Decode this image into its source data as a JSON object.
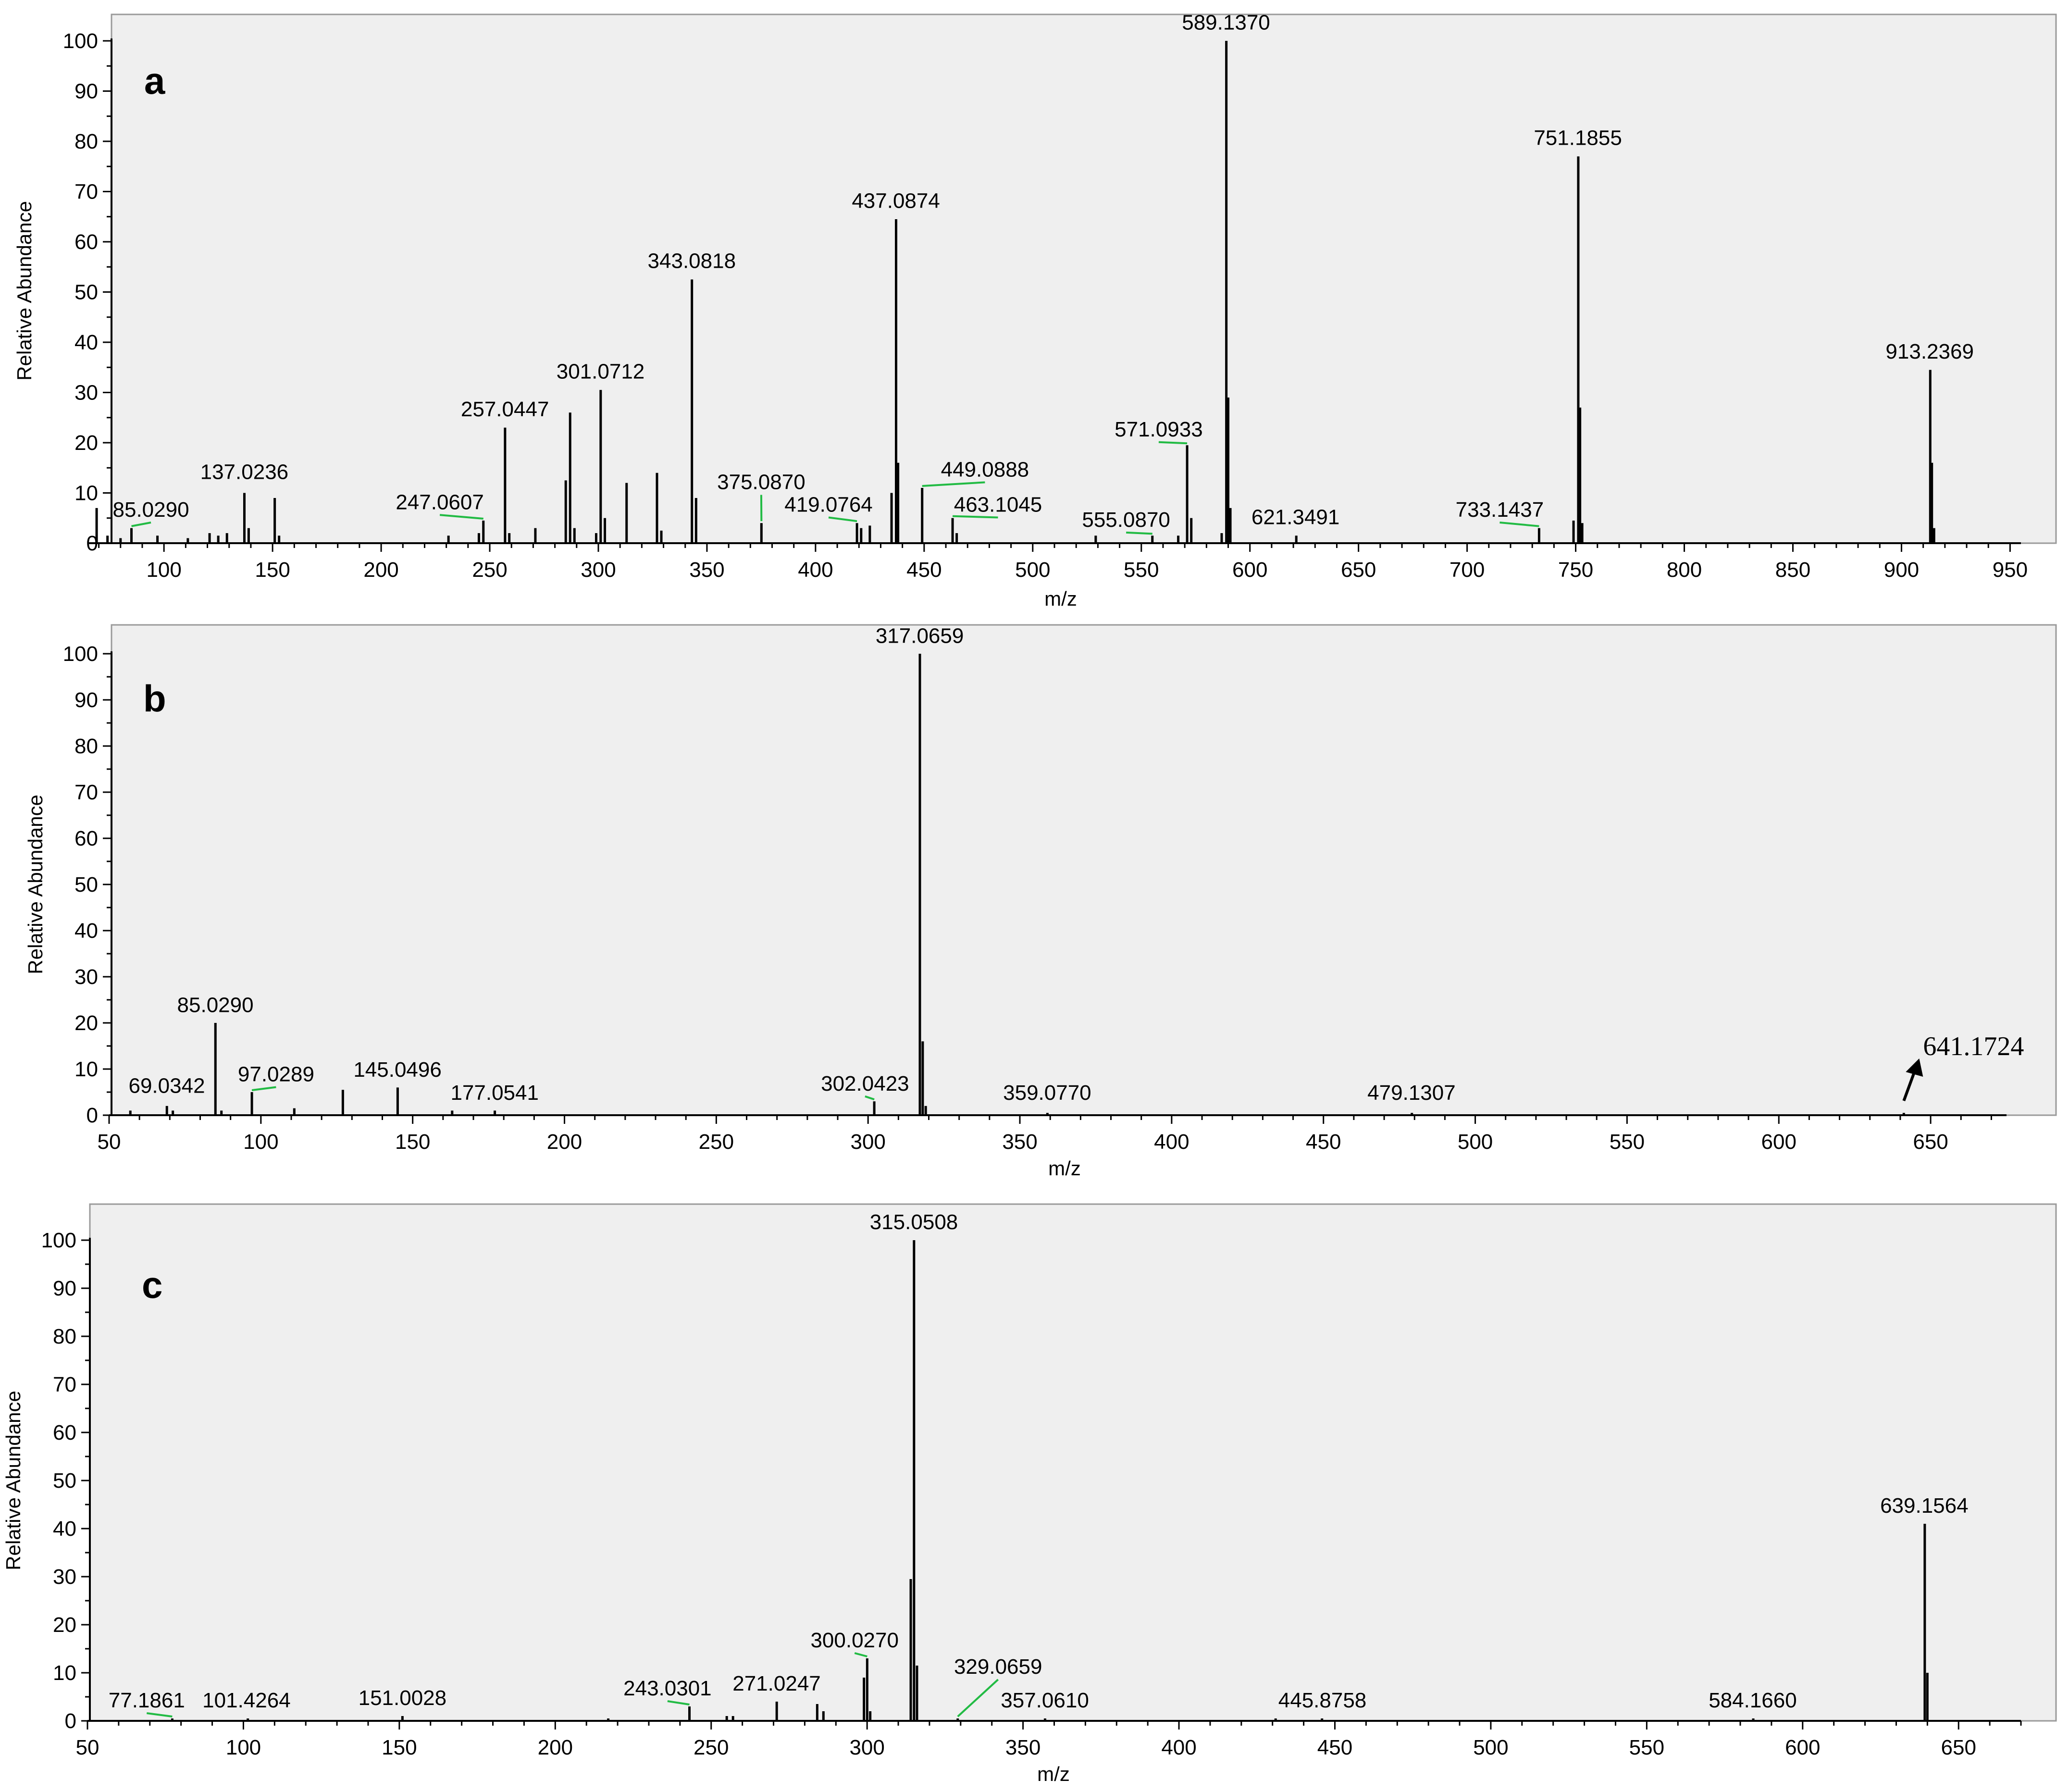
{
  "colors": {
    "plot_bg": "#efefef",
    "frame": "#9a9a9a",
    "peak": "#000000",
    "leader": "#22bb44",
    "text": "#000000"
  },
  "chart_data": [
    {
      "panel": "a",
      "type": "bar",
      "xlabel": "m/z",
      "ylabel": "Relative Abundance",
      "xlim": [
        65,
        955
      ],
      "ylim": [
        0,
        100
      ],
      "xticks": [
        100,
        150,
        200,
        250,
        300,
        350,
        400,
        450,
        500,
        550,
        600,
        650,
        700,
        750,
        800,
        850,
        900,
        950
      ],
      "yticks": [
        0,
        10,
        20,
        30,
        40,
        50,
        60,
        70,
        80,
        90,
        100
      ],
      "peaks": [
        {
          "mz": 69,
          "int": 7
        },
        {
          "mz": 74,
          "int": 1.5
        },
        {
          "mz": 80,
          "int": 1
        },
        {
          "mz": 85.029,
          "int": 3
        },
        {
          "mz": 97,
          "int": 1.5
        },
        {
          "mz": 111,
          "int": 1
        },
        {
          "mz": 121,
          "int": 2
        },
        {
          "mz": 125,
          "int": 1.5
        },
        {
          "mz": 129,
          "int": 2
        },
        {
          "mz": 137.0236,
          "int": 10
        },
        {
          "mz": 139,
          "int": 3
        },
        {
          "mz": 151,
          "int": 9
        },
        {
          "mz": 153,
          "int": 1.5
        },
        {
          "mz": 231,
          "int": 1.5
        },
        {
          "mz": 245,
          "int": 2
        },
        {
          "mz": 247.0607,
          "int": 4.5
        },
        {
          "mz": 257.0447,
          "int": 23
        },
        {
          "mz": 259,
          "int": 2
        },
        {
          "mz": 271,
          "int": 3
        },
        {
          "mz": 285,
          "int": 12.5
        },
        {
          "mz": 287,
          "int": 26
        },
        {
          "mz": 289,
          "int": 3
        },
        {
          "mz": 299,
          "int": 2
        },
        {
          "mz": 301.0712,
          "int": 30.5
        },
        {
          "mz": 303,
          "int": 5
        },
        {
          "mz": 313,
          "int": 12
        },
        {
          "mz": 327,
          "int": 14
        },
        {
          "mz": 329,
          "int": 2.5
        },
        {
          "mz": 343.0818,
          "int": 52.5
        },
        {
          "mz": 345,
          "int": 9
        },
        {
          "mz": 375.087,
          "int": 4
        },
        {
          "mz": 419.0764,
          "int": 4
        },
        {
          "mz": 421,
          "int": 3
        },
        {
          "mz": 425,
          "int": 3.5
        },
        {
          "mz": 435,
          "int": 10
        },
        {
          "mz": 437.0874,
          "int": 64.5
        },
        {
          "mz": 438,
          "int": 16
        },
        {
          "mz": 449.0888,
          "int": 11
        },
        {
          "mz": 463.1045,
          "int": 5
        },
        {
          "mz": 465,
          "int": 2
        },
        {
          "mz": 529,
          "int": 1.5
        },
        {
          "mz": 555.087,
          "int": 1.5
        },
        {
          "mz": 567,
          "int": 1.5
        },
        {
          "mz": 571.0933,
          "int": 19.5
        },
        {
          "mz": 573,
          "int": 5
        },
        {
          "mz": 587,
          "int": 2
        },
        {
          "mz": 589.137,
          "int": 100
        },
        {
          "mz": 590,
          "int": 29
        },
        {
          "mz": 591,
          "int": 7
        },
        {
          "mz": 621.3491,
          "int": 1.5
        },
        {
          "mz": 733.1437,
          "int": 3
        },
        {
          "mz": 749,
          "int": 4.5
        },
        {
          "mz": 751.1855,
          "int": 77
        },
        {
          "mz": 752,
          "int": 27
        },
        {
          "mz": 753,
          "int": 4
        },
        {
          "mz": 913.2369,
          "int": 34.5
        },
        {
          "mz": 914,
          "int": 16
        },
        {
          "mz": 915,
          "int": 3
        }
      ],
      "labels": [
        {
          "text": "85.0290",
          "mz": 85.029,
          "int": 3,
          "lx": 94,
          "ly": 4.5,
          "leader": true
        },
        {
          "text": "137.0236",
          "mz": 137.0236,
          "int": 10,
          "lx": 137,
          "ly": 12
        },
        {
          "text": "247.0607",
          "mz": 247.0607,
          "int": 4.5,
          "lx": 227,
          "ly": 6,
          "leader": true
        },
        {
          "text": "257.0447",
          "mz": 257.0447,
          "int": 23,
          "lx": 257,
          "ly": 24.5
        },
        {
          "text": "301.0712",
          "mz": 301.0712,
          "int": 30.5,
          "lx": 301,
          "ly": 32
        },
        {
          "text": "343.0818",
          "mz": 343.0818,
          "int": 52.5,
          "lx": 343,
          "ly": 54
        },
        {
          "text": "375.0870",
          "mz": 375.087,
          "int": 4,
          "lx": 375,
          "ly": 10,
          "leader": true
        },
        {
          "text": "419.0764",
          "mz": 419.0764,
          "int": 4,
          "lx": 406,
          "ly": 5.5,
          "leader": true
        },
        {
          "text": "437.0874",
          "mz": 437.0874,
          "int": 64.5,
          "lx": 437,
          "ly": 66
        },
        {
          "text": "449.0888",
          "mz": 449.0888,
          "int": 11,
          "lx": 478,
          "ly": 12.5,
          "leader": true
        },
        {
          "text": "463.1045",
          "mz": 463.1045,
          "int": 5,
          "lx": 484,
          "ly": 5.5,
          "leader": true
        },
        {
          "text": "555.0870",
          "mz": 555.087,
          "int": 1.5,
          "lx": 543,
          "ly": 2.5,
          "leader": true
        },
        {
          "text": "571.0933",
          "mz": 571.0933,
          "int": 19.5,
          "lx": 558,
          "ly": 20.5,
          "leader": true
        },
        {
          "text": "589.1370",
          "mz": 589.137,
          "int": 100,
          "lx": 589,
          "ly": 101.5
        },
        {
          "text": "621.3491",
          "mz": 621.3491,
          "int": 1.5,
          "lx": 621,
          "ly": 3
        },
        {
          "text": "733.1437",
          "mz": 733.1437,
          "int": 3,
          "lx": 715,
          "ly": 4.5,
          "leader": true
        },
        {
          "text": "751.1855",
          "mz": 751.1855,
          "int": 77,
          "lx": 751,
          "ly": 78.5
        },
        {
          "text": "913.2369",
          "mz": 913.2369,
          "int": 34.5,
          "lx": 913,
          "ly": 36
        }
      ]
    },
    {
      "panel": "b",
      "type": "bar",
      "xlabel": "m/z",
      "ylabel": "Relative Abundance",
      "xlim": [
        50,
        675
      ],
      "ylim": [
        0,
        100
      ],
      "xticks": [
        50,
        100,
        150,
        200,
        250,
        300,
        350,
        400,
        450,
        500,
        550,
        600,
        650
      ],
      "yticks": [
        0,
        10,
        20,
        30,
        40,
        50,
        60,
        70,
        80,
        90,
        100
      ],
      "peaks": [
        {
          "mz": 57,
          "int": 1
        },
        {
          "mz": 69.0342,
          "int": 2
        },
        {
          "mz": 71,
          "int": 1
        },
        {
          "mz": 85.029,
          "int": 20
        },
        {
          "mz": 87,
          "int": 1
        },
        {
          "mz": 97.0289,
          "int": 5
        },
        {
          "mz": 111,
          "int": 1.5
        },
        {
          "mz": 127,
          "int": 5.5
        },
        {
          "mz": 145.0496,
          "int": 6
        },
        {
          "mz": 163,
          "int": 1
        },
        {
          "mz": 177.0541,
          "int": 1
        },
        {
          "mz": 302.0423,
          "int": 3
        },
        {
          "mz": 317.0659,
          "int": 100
        },
        {
          "mz": 318,
          "int": 16
        },
        {
          "mz": 319,
          "int": 2
        },
        {
          "mz": 359.077,
          "int": 0.5
        },
        {
          "mz": 479.1307,
          "int": 0.5
        },
        {
          "mz": 641.1724,
          "int": 0.5
        }
      ],
      "labels": [
        {
          "text": "69.0342",
          "mz": 69.0342,
          "int": 2,
          "lx": 69,
          "ly": 4
        },
        {
          "text": "85.0290",
          "mz": 85.029,
          "int": 20,
          "lx": 85,
          "ly": 21.5
        },
        {
          "text": "97.0289",
          "mz": 97.0289,
          "int": 5,
          "lx": 105,
          "ly": 6.5,
          "leader": true
        },
        {
          "text": "145.0496",
          "mz": 145.0496,
          "int": 6,
          "lx": 145,
          "ly": 7.5
        },
        {
          "text": "177.0541",
          "mz": 177.0541,
          "int": 1,
          "lx": 177,
          "ly": 2.5
        },
        {
          "text": "302.0423",
          "mz": 302.0423,
          "int": 3,
          "lx": 299,
          "ly": 4.5,
          "leader": true
        },
        {
          "text": "317.0659",
          "mz": 317.0659,
          "int": 100,
          "lx": 317,
          "ly": 101.5
        },
        {
          "text": "359.0770",
          "mz": 359.077,
          "int": 0.5,
          "lx": 359,
          "ly": 2.5
        },
        {
          "text": "479.1307",
          "mz": 479.1307,
          "int": 0.5,
          "lx": 479,
          "ly": 2.5
        }
      ],
      "arrow_label": {
        "text": "641.1724",
        "mz": 641.1724
      }
    },
    {
      "panel": "c",
      "type": "bar",
      "xlabel": "m/z",
      "ylabel": "Relative Abundance",
      "xlim": [
        50,
        670
      ],
      "ylim": [
        0,
        100
      ],
      "xticks": [
        50,
        100,
        150,
        200,
        250,
        300,
        350,
        400,
        450,
        500,
        550,
        600,
        650
      ],
      "yticks": [
        0,
        10,
        20,
        30,
        40,
        50,
        60,
        70,
        80,
        90,
        100
      ],
      "peaks": [
        {
          "mz": 77.1861,
          "int": 0.5
        },
        {
          "mz": 101.4264,
          "int": 0.5
        },
        {
          "mz": 151.0028,
          "int": 1
        },
        {
          "mz": 217,
          "int": 0.5
        },
        {
          "mz": 243.0301,
          "int": 3
        },
        {
          "mz": 255,
          "int": 1
        },
        {
          "mz": 257,
          "int": 1
        },
        {
          "mz": 271.0247,
          "int": 4
        },
        {
          "mz": 284,
          "int": 3.5
        },
        {
          "mz": 286,
          "int": 2
        },
        {
          "mz": 299,
          "int": 9
        },
        {
          "mz": 300.027,
          "int": 13
        },
        {
          "mz": 301,
          "int": 2
        },
        {
          "mz": 314,
          "int": 29.5
        },
        {
          "mz": 315.0508,
          "int": 100
        },
        {
          "mz": 316,
          "int": 11.5
        },
        {
          "mz": 329.0659,
          "int": 0.5
        },
        {
          "mz": 357.061,
          "int": 0.5
        },
        {
          "mz": 431,
          "int": 0.5
        },
        {
          "mz": 445.8758,
          "int": 0.5
        },
        {
          "mz": 584.166,
          "int": 0.5
        },
        {
          "mz": 639.1564,
          "int": 41
        },
        {
          "mz": 640,
          "int": 10
        }
      ],
      "labels": [
        {
          "text": "77.1861",
          "mz": 77.1861,
          "int": 0.5,
          "lx": 69,
          "ly": 2,
          "leader": true
        },
        {
          "text": "101.4264",
          "mz": 101.4264,
          "int": 0.5,
          "lx": 101,
          "ly": 2
        },
        {
          "text": "151.0028",
          "mz": 151.0028,
          "int": 1,
          "lx": 151,
          "ly": 2.5
        },
        {
          "text": "243.0301",
          "mz": 243.0301,
          "int": 3,
          "lx": 236,
          "ly": 4.5,
          "leader": true
        },
        {
          "text": "271.0247",
          "mz": 271.0247,
          "int": 4,
          "lx": 271,
          "ly": 5.5
        },
        {
          "text": "300.0270",
          "mz": 300.027,
          "int": 13,
          "lx": 296,
          "ly": 14.5,
          "leader": true
        },
        {
          "text": "329.0659",
          "mz": 329.0659,
          "int": 0.5,
          "lx": 342,
          "ly": 9,
          "leader": true
        },
        {
          "text": "357.0610",
          "mz": 357.061,
          "int": 0.5,
          "lx": 357,
          "ly": 2
        },
        {
          "text": "445.8758",
          "mz": 445.8758,
          "int": 0.5,
          "lx": 446,
          "ly": 2
        },
        {
          "text": "584.1660",
          "mz": 584.166,
          "int": 0.5,
          "lx": 584,
          "ly": 2
        },
        {
          "text": "315.0508",
          "mz": 315.0508,
          "int": 100,
          "lx": 315,
          "ly": 101.5
        },
        {
          "text": "639.1564",
          "mz": 639.1564,
          "int": 41,
          "lx": 639,
          "ly": 42.5
        }
      ]
    }
  ]
}
